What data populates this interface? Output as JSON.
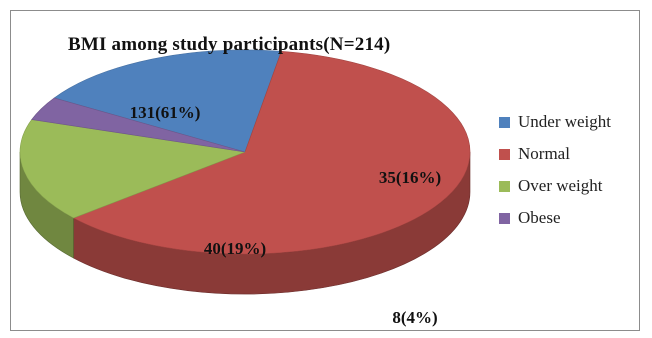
{
  "chart_data": {
    "type": "pie",
    "style": "3d",
    "title": "BMI among study participants(N=214)",
    "total": 214,
    "legend_position": "right",
    "slices": [
      {
        "name": "Under weight",
        "value": 40,
        "percent": 19,
        "label": "40(19%)",
        "color": "#4f81bd"
      },
      {
        "name": "Normal",
        "value": 131,
        "percent": 61,
        "label": "131(61%)",
        "color": "#c0504d"
      },
      {
        "name": "Over weight",
        "value": 35,
        "percent": 16,
        "label": "35(16%)",
        "color": "#9bbb59"
      },
      {
        "name": "Obese",
        "value": 8,
        "percent": 4,
        "label": "8(4%)",
        "color": "#8064a2"
      }
    ]
  }
}
